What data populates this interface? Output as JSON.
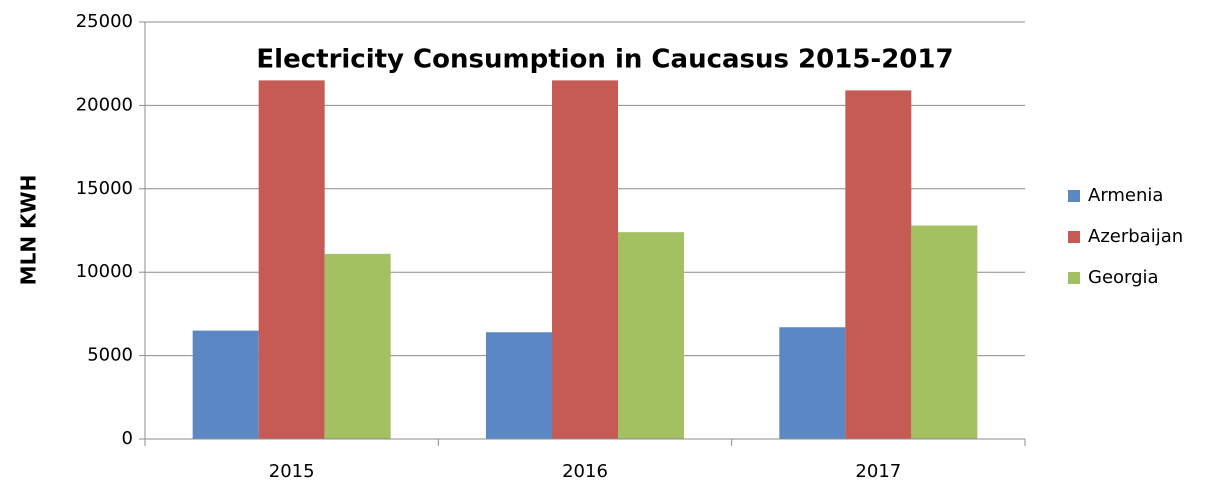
{
  "chart_data": {
    "type": "bar",
    "title": "Electricity Consumption in Caucasus 2015-2017",
    "y_label": "MLN KWH",
    "categories": [
      "2015",
      "2016",
      "2017"
    ],
    "series": [
      {
        "name": "Armenia",
        "color": "#5b87c5",
        "values": [
          6500,
          6400,
          6700
        ]
      },
      {
        "name": "Azerbaijan",
        "color": "#c65a55",
        "values": [
          21500,
          21500,
          20900
        ]
      },
      {
        "name": "Georgia",
        "color": "#a3c062",
        "values": [
          11100,
          12400,
          12800
        ]
      }
    ],
    "ylim": [
      0,
      25000
    ],
    "yticks": [
      0,
      5000,
      10000,
      15000,
      20000,
      25000
    ],
    "grid": true,
    "legend": "right"
  }
}
